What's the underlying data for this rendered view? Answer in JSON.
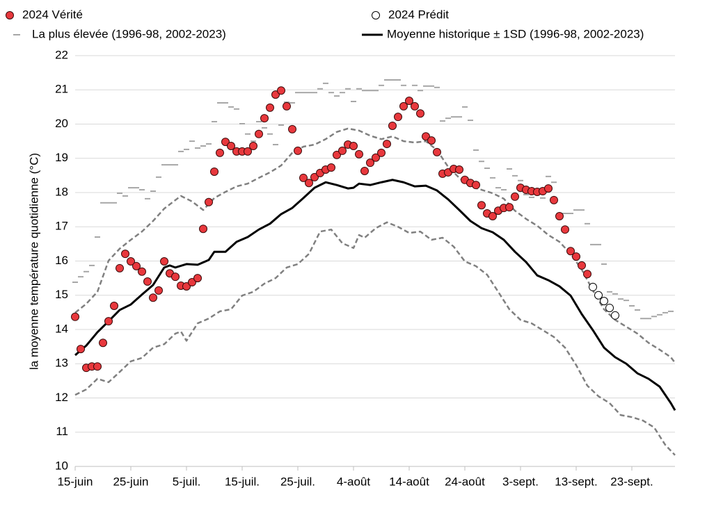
{
  "chart_data": {
    "type": "line",
    "y_label": "la moyenne température quotidienne (°C)",
    "xlim": [
      0,
      107.75
    ],
    "xticks": [
      {
        "value": 0,
        "label": "15-juin"
      },
      {
        "value": 10,
        "label": "25-juin"
      },
      {
        "value": 20,
        "label": "5-juil."
      },
      {
        "value": 30,
        "label": "15-juil."
      },
      {
        "value": 40,
        "label": "25-juil."
      },
      {
        "value": 50,
        "label": "4-août"
      },
      {
        "value": 60,
        "label": "14-août"
      },
      {
        "value": 70,
        "label": "24-août"
      },
      {
        "value": 80,
        "label": "3-sept."
      },
      {
        "value": 90,
        "label": "13-sept."
      },
      {
        "value": 100,
        "label": "23-sept."
      }
    ],
    "ylim": [
      10,
      22
    ],
    "yticks": [
      10,
      11,
      12,
      13,
      14,
      15,
      16,
      17,
      18,
      19,
      20,
      21,
      22
    ],
    "grid": true,
    "series": [
      {
        "name": "2024 Vérité",
        "style": "dot",
        "color": "#e8383d",
        "x": [
          0,
          1,
          2,
          3,
          4,
          5,
          6,
          7,
          8,
          9,
          10,
          11,
          12,
          13,
          14,
          15,
          16,
          17,
          18,
          19,
          20,
          21,
          22,
          23,
          24,
          25,
          26,
          27,
          28,
          29,
          30,
          31,
          32,
          33,
          34,
          35,
          36,
          37,
          38,
          39,
          40,
          41,
          42,
          43,
          44,
          45,
          46,
          47,
          48,
          49,
          50,
          51,
          52,
          53,
          54,
          55,
          56,
          57,
          58,
          59,
          60,
          61,
          62,
          63,
          64,
          65,
          66,
          67,
          68,
          69,
          70,
          71,
          72,
          73,
          74,
          75,
          76,
          77,
          78,
          79,
          80,
          81,
          82,
          83,
          84,
          85,
          86,
          87,
          88,
          89,
          90,
          91,
          92
        ],
        "values": [
          14.37,
          13.43,
          12.88,
          12.92,
          12.92,
          13.61,
          14.24,
          14.69,
          15.79,
          16.21,
          15.99,
          15.85,
          15.69,
          15.4,
          14.93,
          15.14,
          15.99,
          15.64,
          15.54,
          15.28,
          15.26,
          15.38,
          15.5,
          16.94,
          17.72,
          18.61,
          19.16,
          19.48,
          19.36,
          19.2,
          19.2,
          19.2,
          19.36,
          19.71,
          20.17,
          20.48,
          20.86,
          20.98,
          20.52,
          19.85,
          19.22,
          18.43,
          18.28,
          18.45,
          18.57,
          18.67,
          18.73,
          19.1,
          19.22,
          19.4,
          19.36,
          19.12,
          18.63,
          18.87,
          19.02,
          19.16,
          19.42,
          19.95,
          20.21,
          20.52,
          20.68,
          20.52,
          20.31,
          19.64,
          19.52,
          19.18,
          18.55,
          18.59,
          18.69,
          18.67,
          18.37,
          18.28,
          18.22,
          17.63,
          17.39,
          17.31,
          17.47,
          17.55,
          17.57,
          17.88,
          18.14,
          18.08,
          18.04,
          18.02,
          18.04,
          18.12,
          17.78,
          17.31,
          16.92,
          16.29,
          16.13,
          15.87,
          15.62
        ]
      },
      {
        "name": "2024 Prédit",
        "style": "open-dot",
        "color": "#ffffff",
        "x": [
          93,
          94,
          95,
          96,
          97
        ],
        "values": [
          15.24,
          15.0,
          14.83,
          14.63,
          14.41
        ]
      },
      {
        "name": "La plus élevée (1996-98, 2002-2023)",
        "style": "dash",
        "color": "#a6a6a6",
        "x": [
          0,
          1,
          2,
          3,
          4,
          5,
          6,
          7,
          8,
          9,
          10,
          11,
          12,
          13,
          14,
          15,
          16,
          17,
          18,
          19,
          20,
          21,
          22,
          23,
          24,
          25,
          26,
          27,
          28,
          29,
          30,
          31,
          32,
          33,
          34,
          35,
          36,
          37,
          38,
          39,
          40,
          41,
          42,
          43,
          44,
          45,
          46,
          47,
          48,
          49,
          50,
          51,
          52,
          53,
          54,
          55,
          56,
          57,
          58,
          59,
          60,
          61,
          62,
          63,
          64,
          65,
          66,
          67,
          68,
          69,
          70,
          71,
          72,
          73,
          74,
          75,
          76,
          77,
          78,
          79,
          80,
          81,
          82,
          83,
          84,
          85,
          86,
          87,
          88,
          89,
          90,
          91,
          92,
          93,
          94,
          95,
          96,
          97,
          98,
          99,
          100,
          101,
          102,
          103,
          104,
          105,
          106,
          107
        ],
        "values": [
          15.38,
          15.54,
          15.69,
          15.87,
          16.7,
          17.7,
          17.7,
          17.7,
          17.98,
          17.9,
          18.14,
          18.14,
          18.08,
          17.82,
          18.04,
          18.45,
          18.81,
          18.81,
          18.81,
          19.2,
          19.26,
          19.5,
          19.3,
          19.36,
          19.42,
          20.07,
          20.62,
          20.62,
          20.5,
          20.44,
          20.01,
          19.71,
          19.5,
          20.07,
          19.89,
          19.71,
          19.4,
          19.97,
          20.64,
          20.62,
          20.92,
          20.92,
          20.92,
          20.92,
          21.03,
          21.19,
          20.92,
          20.82,
          20.92,
          21.03,
          20.66,
          21.03,
          20.98,
          20.98,
          20.98,
          21.13,
          21.29,
          21.29,
          21.29,
          21.13,
          20.62,
          21.13,
          20.98,
          21.11,
          21.11,
          21.07,
          20.09,
          20.17,
          20.21,
          20.21,
          20.5,
          20.11,
          19.24,
          18.91,
          18.71,
          18.43,
          18.14,
          18.08,
          18.69,
          18.49,
          18.35,
          17.94,
          17.86,
          18.04,
          17.84,
          18.47,
          18.3,
          17.39,
          17.39,
          17.39,
          17.49,
          17.49,
          17.09,
          16.48,
          16.48,
          15.91,
          15.1,
          15.04,
          14.89,
          14.85,
          14.69,
          14.57,
          14.32,
          14.32,
          14.38,
          14.43,
          14.49,
          14.53
        ]
      },
      {
        "name": "Moyenne historique ± 1SD (1996-98, 2002-2023)",
        "style": "line",
        "color": "#000000",
        "x": [
          0,
          2,
          4,
          6,
          8,
          10,
          12,
          14,
          16,
          17,
          18,
          20,
          22,
          24,
          25,
          27,
          29,
          31,
          33,
          35,
          37,
          39,
          41,
          43,
          45,
          47,
          49,
          50,
          51,
          53,
          55,
          57,
          59,
          61,
          63,
          65,
          67,
          69,
          71,
          73,
          75,
          77,
          79,
          81,
          83,
          85,
          87,
          89,
          91,
          93,
          95,
          97,
          99,
          101,
          103,
          105,
          107,
          107.75
        ],
        "values": [
          13.25,
          13.53,
          13.92,
          14.24,
          14.57,
          14.73,
          15.02,
          15.3,
          15.81,
          15.87,
          15.81,
          15.91,
          15.89,
          16.03,
          16.27,
          16.27,
          16.56,
          16.7,
          16.92,
          17.09,
          17.37,
          17.55,
          17.84,
          18.14,
          18.3,
          18.22,
          18.12,
          18.14,
          18.26,
          18.22,
          18.3,
          18.37,
          18.3,
          18.18,
          18.2,
          18.06,
          17.8,
          17.49,
          17.17,
          16.96,
          16.84,
          16.62,
          16.27,
          15.97,
          15.58,
          15.44,
          15.26,
          14.99,
          14.45,
          13.98,
          13.47,
          13.19,
          13.0,
          12.72,
          12.56,
          12.33,
          11.85,
          11.64
        ]
      },
      {
        "style": "dashed-line",
        "color": "#808080",
        "x": [
          0,
          2,
          4,
          6,
          8,
          10,
          12,
          14,
          16,
          18,
          19,
          21,
          23,
          25,
          27,
          29,
          31,
          33,
          35,
          36,
          37,
          39,
          41,
          43,
          45,
          47,
          49,
          51,
          53,
          55,
          57,
          59,
          61,
          63,
          65,
          67,
          69,
          71,
          73,
          75,
          77,
          79,
          81,
          83,
          85,
          87,
          89,
          91,
          93,
          95,
          97,
          99,
          101,
          103,
          105,
          107,
          107.75
        ],
        "values": [
          14.49,
          14.75,
          15.1,
          16.01,
          16.36,
          16.62,
          16.86,
          17.17,
          17.53,
          17.78,
          17.9,
          17.74,
          17.49,
          17.84,
          18.02,
          18.18,
          18.26,
          18.43,
          18.59,
          18.69,
          18.79,
          19.16,
          19.34,
          19.4,
          19.56,
          19.77,
          19.87,
          19.81,
          19.66,
          19.56,
          19.64,
          19.5,
          19.46,
          19.5,
          19.24,
          18.75,
          18.43,
          18.18,
          18.08,
          17.98,
          17.82,
          17.47,
          17.23,
          17.03,
          16.76,
          16.56,
          16.21,
          15.75,
          15.14,
          14.59,
          14.28,
          14.08,
          13.88,
          13.61,
          13.41,
          13.19,
          13.03
        ]
      },
      {
        "style": "dashed-line",
        "color": "#808080",
        "x": [
          0,
          2,
          4,
          6,
          8,
          10,
          12,
          14,
          16,
          18,
          19,
          20,
          22,
          24,
          26,
          28,
          30,
          32,
          34,
          36,
          38,
          40,
          42,
          44,
          46,
          48,
          50,
          51,
          52,
          54,
          56,
          58,
          60,
          62,
          64,
          66,
          68,
          70,
          72,
          74,
          76,
          78,
          80,
          82,
          84,
          86,
          88,
          90,
          92,
          94,
          96,
          98,
          100,
          102,
          104,
          106,
          107.75
        ],
        "values": [
          12.09,
          12.25,
          12.56,
          12.46,
          12.76,
          13.07,
          13.17,
          13.47,
          13.57,
          13.88,
          13.94,
          13.67,
          14.18,
          14.32,
          14.53,
          14.59,
          14.99,
          15.1,
          15.34,
          15.5,
          15.81,
          15.91,
          16.21,
          16.86,
          16.92,
          16.52,
          16.38,
          16.76,
          16.68,
          16.96,
          17.13,
          17.0,
          16.82,
          16.86,
          16.62,
          16.68,
          16.42,
          15.99,
          15.85,
          15.6,
          15.1,
          14.59,
          14.28,
          14.18,
          13.98,
          13.78,
          13.47,
          12.96,
          12.36,
          12.05,
          11.85,
          11.5,
          11.44,
          11.34,
          11.14,
          10.63,
          10.33
        ]
      }
    ]
  }
}
